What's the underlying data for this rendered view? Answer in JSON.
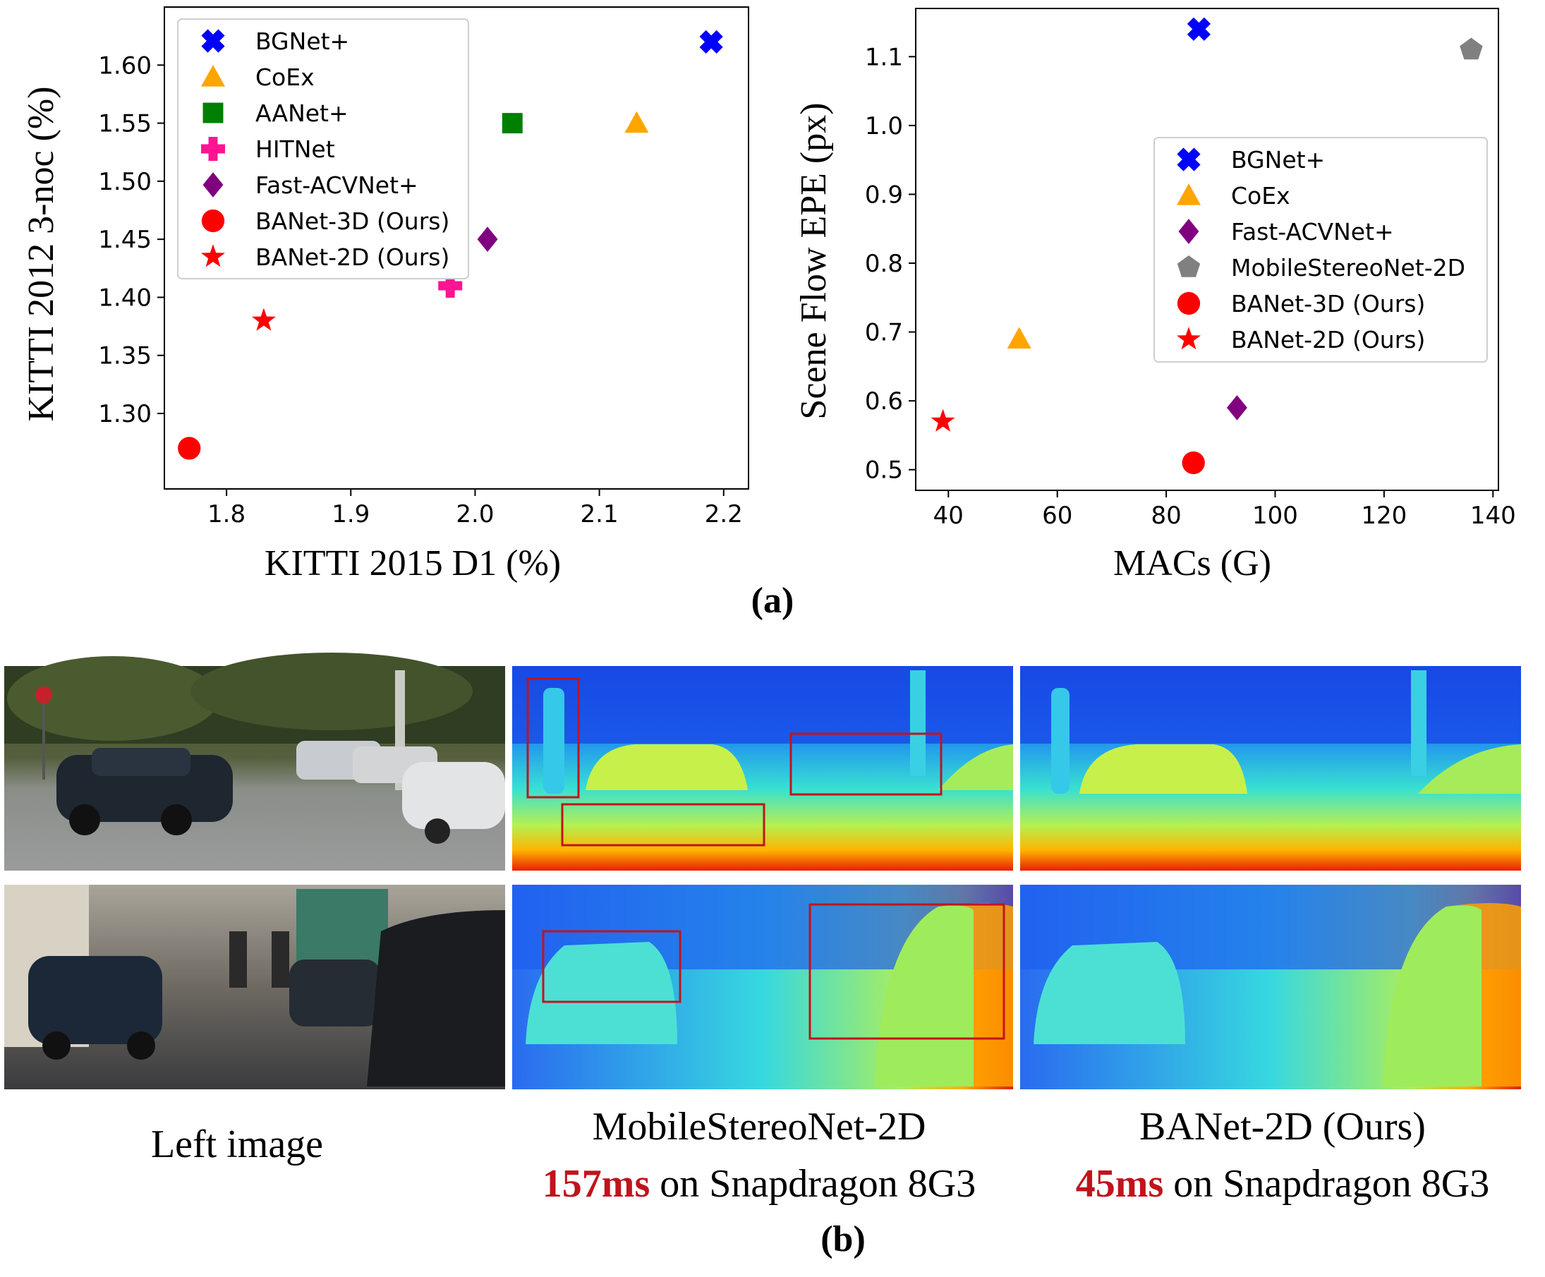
{
  "panel_a_caption": "(a)",
  "panel_b_caption": "(b)",
  "chart_data": [
    {
      "type": "scatter",
      "xlabel": "KITTI 2015 D1 (%)",
      "ylabel": "KITTI 2012 3-noc (%)",
      "xlim": [
        1.75,
        2.22
      ],
      "ylim": [
        1.235,
        1.65
      ],
      "xticks": [
        "1.8",
        "1.9",
        "2.0",
        "2.1",
        "2.2"
      ],
      "yticks": [
        "1.30",
        "1.35",
        "1.40",
        "1.45",
        "1.50",
        "1.55",
        "1.60"
      ],
      "grid": false,
      "legend_position": "top-left",
      "series": [
        {
          "name": "BGNet+",
          "marker": "x",
          "color": "#0000ff",
          "x": 2.19,
          "y": 1.62
        },
        {
          "name": "CoEx",
          "marker": "triangle",
          "color": "#ffa500",
          "x": 2.13,
          "y": 1.55
        },
        {
          "name": "AANet+",
          "marker": "square",
          "color": "#008000",
          "x": 2.03,
          "y": 1.55
        },
        {
          "name": "HITNet",
          "marker": "plus",
          "color": "#ff1493",
          "x": 1.98,
          "y": 1.41
        },
        {
          "name": "Fast-ACVNet+",
          "marker": "diamond",
          "color": "#800080",
          "x": 2.01,
          "y": 1.45
        },
        {
          "name": "BANet-3D (Ours)",
          "marker": "circle",
          "color": "#ff0000",
          "x": 1.77,
          "y": 1.27
        },
        {
          "name": "BANet-2D (Ours)",
          "marker": "star",
          "color": "#ff0000",
          "x": 1.83,
          "y": 1.38
        }
      ]
    },
    {
      "type": "scatter",
      "xlabel": "MACs (G)",
      "ylabel": "Scene Flow EPE (px)",
      "xlim": [
        34,
        141
      ],
      "ylim": [
        0.47,
        1.17
      ],
      "xticks": [
        "40",
        "60",
        "80",
        "100",
        "120",
        "140"
      ],
      "yticks": [
        "0.5",
        "0.6",
        "0.7",
        "0.8",
        "0.9",
        "1.0",
        "1.1"
      ],
      "grid": false,
      "legend_position": "center-right",
      "series": [
        {
          "name": "BGNet+",
          "marker": "x",
          "color": "#0000ff",
          "x": 86,
          "y": 1.14
        },
        {
          "name": "CoEx",
          "marker": "triangle",
          "color": "#ffa500",
          "x": 53,
          "y": 0.69
        },
        {
          "name": "Fast-ACVNet+",
          "marker": "diamond",
          "color": "#800080",
          "x": 93,
          "y": 0.59
        },
        {
          "name": "MobileStereoNet-2D",
          "marker": "pentagon",
          "color": "#808080",
          "x": 136,
          "y": 1.11
        },
        {
          "name": "BANet-3D (Ours)",
          "marker": "circle",
          "color": "#ff0000",
          "x": 85,
          "y": 0.51
        },
        {
          "name": "BANet-2D (Ours)",
          "marker": "star",
          "color": "#ff0000",
          "x": 39,
          "y": 0.57
        }
      ]
    }
  ],
  "images": {
    "left_caption": "Left image",
    "mid_caption_line1": "MobileStereoNet-2D",
    "mid_time": "157ms",
    "mid_suffix": " on Snapdragon 8G3",
    "right_caption_line1": "BANet-2D (Ours)",
    "right_time": "45ms",
    "right_suffix": " on Snapdragon 8G3",
    "highlight_color": "#c0141c"
  }
}
